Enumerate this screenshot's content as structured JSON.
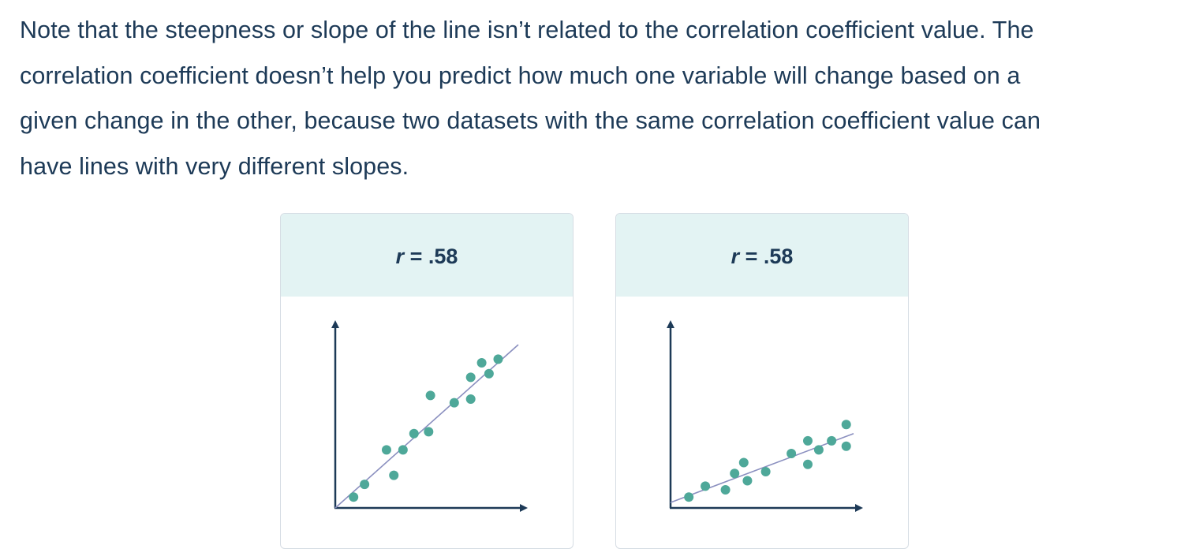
{
  "text": {
    "line1": "Note that the steepness or slope of the line isn’t related to the correlation coefficient value. The",
    "line2": "correlation coefficient doesn’t help you predict how much one variable will change based on a",
    "line3": "given change in the other, because two datasets with the same correlation coefficient value can",
    "line4": "have lines with very different slopes."
  },
  "colors": {
    "text": "#1d3a57",
    "header_bg": "#e3f3f3",
    "point": "#4ea899",
    "fit_line": "#8a8fbf",
    "axis": "#1d3a57"
  },
  "chart_data": [
    {
      "type": "scatter",
      "title_symbol": "r",
      "title_value": " = .58",
      "xlim": [
        0,
        10
      ],
      "ylim": [
        0,
        10
      ],
      "points": [
        {
          "x": 1.0,
          "y": 0.6
        },
        {
          "x": 1.6,
          "y": 1.3
        },
        {
          "x": 3.2,
          "y": 1.8
        },
        {
          "x": 2.8,
          "y": 3.2
        },
        {
          "x": 3.7,
          "y": 3.2
        },
        {
          "x": 4.3,
          "y": 4.1
        },
        {
          "x": 5.1,
          "y": 4.2
        },
        {
          "x": 5.2,
          "y": 6.2
        },
        {
          "x": 6.5,
          "y": 5.8
        },
        {
          "x": 7.4,
          "y": 6.0
        },
        {
          "x": 7.4,
          "y": 7.2
        },
        {
          "x": 8.4,
          "y": 7.4
        },
        {
          "x": 8.0,
          "y": 8.0
        },
        {
          "x": 8.9,
          "y": 8.2
        }
      ],
      "fit_line": [
        [
          0,
          0
        ],
        [
          10,
          9.0
        ]
      ]
    },
    {
      "type": "scatter",
      "title_symbol": "r",
      "title_value": " = .58",
      "xlim": [
        0,
        10
      ],
      "ylim": [
        0,
        10
      ],
      "points": [
        {
          "x": 1.0,
          "y": 0.6
        },
        {
          "x": 1.9,
          "y": 1.2
        },
        {
          "x": 3.0,
          "y": 1.0
        },
        {
          "x": 3.5,
          "y": 1.9
        },
        {
          "x": 4.0,
          "y": 2.5
        },
        {
          "x": 4.2,
          "y": 1.5
        },
        {
          "x": 5.2,
          "y": 2.0
        },
        {
          "x": 6.6,
          "y": 3.0
        },
        {
          "x": 7.5,
          "y": 2.4
        },
        {
          "x": 7.5,
          "y": 3.7
        },
        {
          "x": 8.1,
          "y": 3.2
        },
        {
          "x": 8.8,
          "y": 3.7
        },
        {
          "x": 9.6,
          "y": 3.4
        },
        {
          "x": 9.6,
          "y": 4.6
        }
      ],
      "fit_line": [
        [
          0,
          0.3
        ],
        [
          10,
          4.1
        ]
      ]
    }
  ]
}
